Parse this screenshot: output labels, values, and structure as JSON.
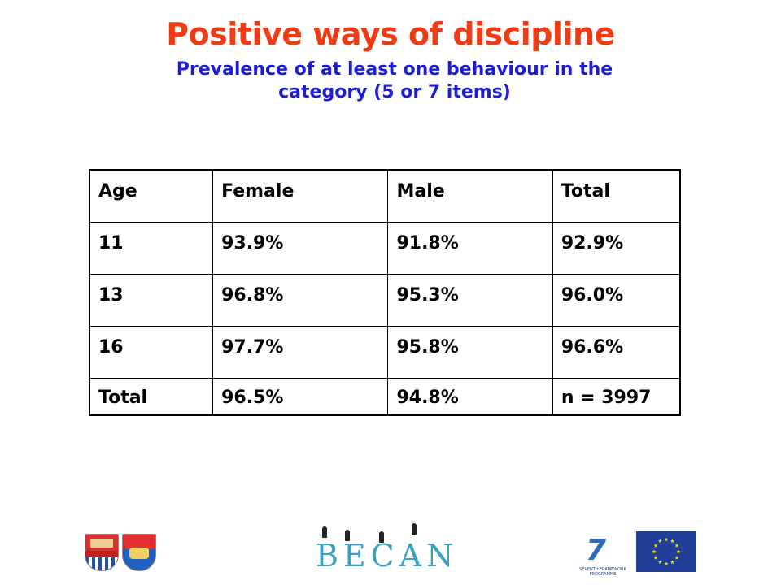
{
  "title": "Positive ways of discipline",
  "subtitle": {
    "line1": "Prevalence of at least one behaviour in the",
    "line2": "category (5 or 7 items)"
  },
  "table": {
    "headers": [
      "Age",
      "Female",
      "Male",
      "Total"
    ],
    "rows": [
      [
        "11",
        "93.9%",
        "91.8%",
        "92.9%"
      ],
      [
        "13",
        "96.8%",
        "95.3%",
        "96.0%"
      ],
      [
        "16",
        "97.7%",
        "95.8%",
        "96.6%"
      ],
      [
        "Total",
        "96.5%",
        "94.8%",
        "n = 3997"
      ]
    ]
  },
  "logos": {
    "becan": "BECAN",
    "fp7_text_line1": "SEVENTH FRAMEWORK",
    "fp7_text_line2": "PROGRAMME",
    "fp7_mark": "7"
  },
  "colors": {
    "title": "#f03c14",
    "subtitle": "#1c1cd8",
    "eu_flag_blue": "#1f3f99",
    "eu_flag_star": "#ffdd00"
  }
}
